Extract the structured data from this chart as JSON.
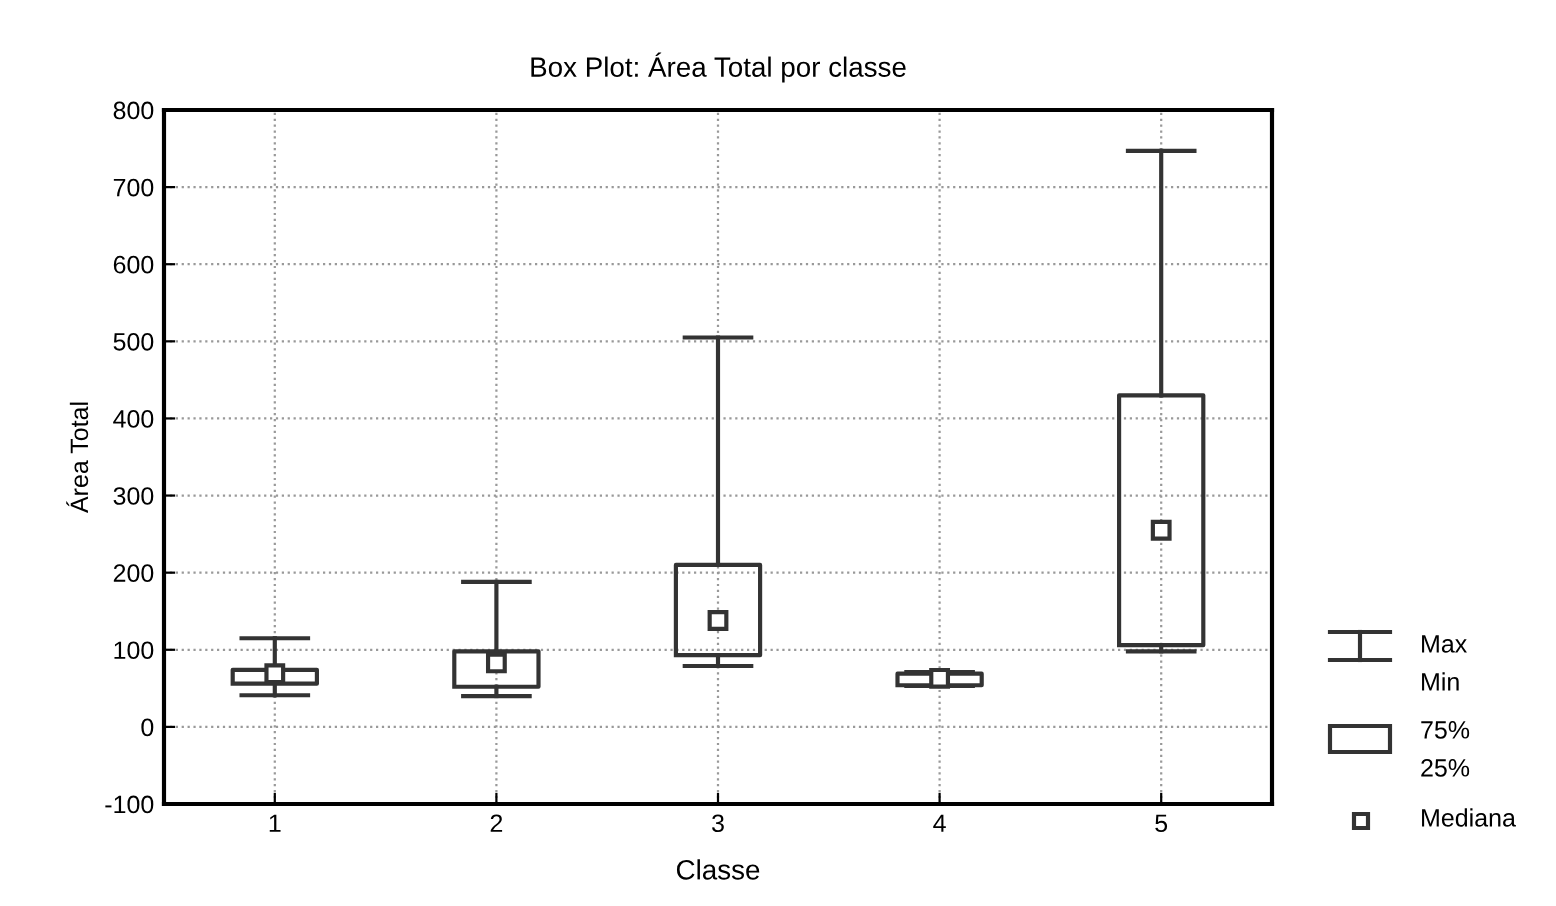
{
  "chart_data": {
    "type": "box",
    "title": "Box Plot: Área Total por classe",
    "xlabel": "Classe",
    "ylabel": "Área Total",
    "categories": [
      "1",
      "2",
      "3",
      "4",
      "5"
    ],
    "boxes": [
      {
        "low": 41,
        "q1": 56,
        "median": 69,
        "q3": 74,
        "high": 115
      },
      {
        "low": 40,
        "q1": 52,
        "median": 83,
        "q3": 98,
        "high": 188
      },
      {
        "low": 79,
        "q1": 93,
        "median": 138,
        "q3": 210,
        "high": 505
      },
      {
        "low": 53,
        "q1": 54,
        "median": 63,
        "q3": 69,
        "high": 71
      },
      {
        "low": 98,
        "q1": 106,
        "median": 255,
        "q3": 430,
        "high": 747
      }
    ],
    "ylim": [
      -100,
      800
    ],
    "yticks": [
      -100,
      0,
      100,
      200,
      300,
      400,
      500,
      600,
      700,
      800
    ],
    "grid": true,
    "marker": "square",
    "annotations": [
      "Max",
      "Min",
      "75%",
      "25%",
      "Mediana"
    ]
  }
}
